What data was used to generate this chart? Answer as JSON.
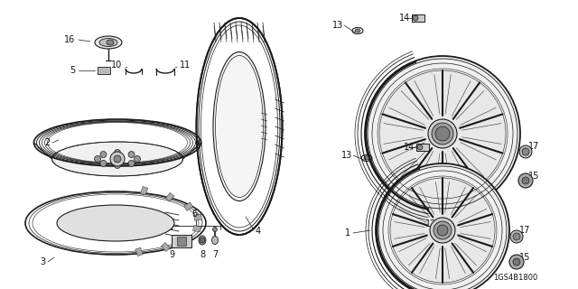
{
  "bg_color": "#ffffff",
  "line_color": "#1a1a1a",
  "diagram_code": "1GS4B1800",
  "font_size_label": 7,
  "font_size_code": 6
}
